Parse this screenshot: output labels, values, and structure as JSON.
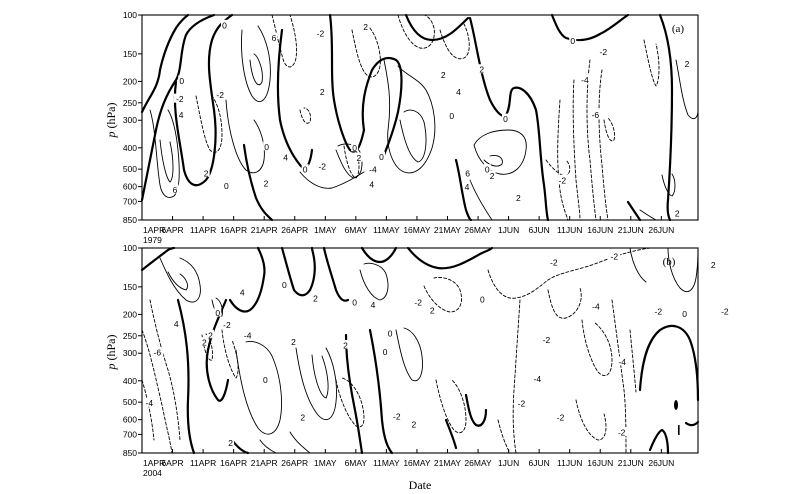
{
  "chart_data": [
    {
      "type": "contour",
      "panel_label": "(a)",
      "year_label": "1979",
      "xlabel": "",
      "ylabel": "p (hPa)",
      "ylabel_symbol": "p",
      "ylabel_unit": " (hPa)",
      "y_scale": "log",
      "ylim": [
        850,
        100
      ],
      "y_ticks": [
        100,
        150,
        200,
        250,
        300,
        400,
        500,
        600,
        700,
        850
      ],
      "x_ticks": [
        "1APR",
        "6APR",
        "11APR",
        "16APR",
        "21APR",
        "26APR",
        "1MAY",
        "6MAY",
        "11MAY",
        "16MAY",
        "21MAY",
        "26MAY",
        "1JUN",
        "6JUN",
        "11JUN",
        "16JUN",
        "21JUN",
        "26JUN"
      ],
      "contour_levels": [
        -6,
        -4,
        -2,
        0,
        2,
        4,
        6
      ],
      "labels": [
        {
          "text": "0",
          "day": 13.5,
          "p": 112
        },
        {
          "text": "6",
          "day": 21.6,
          "p": 128
        },
        {
          "text": "-2",
          "day": 29.2,
          "p": 122
        },
        {
          "text": "2",
          "day": 36.6,
          "p": 114
        },
        {
          "text": "0",
          "day": 70.5,
          "p": 132
        },
        {
          "text": "-2",
          "day": 75.5,
          "p": 148
        },
        {
          "text": "2",
          "day": 89.2,
          "p": 168
        },
        {
          "text": "0",
          "day": 6.5,
          "p": 200
        },
        {
          "text": "-2",
          "day": 6.2,
          "p": 242
        },
        {
          "text": "-2",
          "day": 12.8,
          "p": 232
        },
        {
          "text": "2",
          "day": 49.3,
          "p": 188
        },
        {
          "text": "2",
          "day": 55.6,
          "p": 178
        },
        {
          "text": "-4",
          "day": 72.5,
          "p": 198
        },
        {
          "text": "2",
          "day": 29.5,
          "p": 225
        },
        {
          "text": "4",
          "day": 51.8,
          "p": 225
        },
        {
          "text": "4",
          "day": 6.4,
          "p": 285
        },
        {
          "text": "0",
          "day": 50.7,
          "p": 288
        },
        {
          "text": "0",
          "day": 59.5,
          "p": 298
        },
        {
          "text": "-6",
          "day": 74.2,
          "p": 285
        },
        {
          "text": "0",
          "day": 20.4,
          "p": 398
        },
        {
          "text": "0",
          "day": 34.8,
          "p": 402
        },
        {
          "text": "4",
          "day": 23.5,
          "p": 445
        },
        {
          "text": "2",
          "day": 35.5,
          "p": 448
        },
        {
          "text": "0",
          "day": 39.2,
          "p": 443
        },
        {
          "text": "2",
          "day": 10.5,
          "p": 525
        },
        {
          "text": "0",
          "day": 26.7,
          "p": 505
        },
        {
          "text": "-2",
          "day": 29.5,
          "p": 490
        },
        {
          "text": "-4",
          "day": 37.8,
          "p": 505
        },
        {
          "text": "6",
          "day": 53.3,
          "p": 525
        },
        {
          "text": "2",
          "day": 57.3,
          "p": 540
        },
        {
          "text": "0",
          "day": 56.5,
          "p": 505
        },
        {
          "text": "-2",
          "day": 68.8,
          "p": 565
        },
        {
          "text": "2",
          "day": 20.3,
          "p": 585
        },
        {
          "text": "0",
          "day": 13.8,
          "p": 600
        },
        {
          "text": "4",
          "day": 37.6,
          "p": 590
        },
        {
          "text": "4",
          "day": 53.2,
          "p": 605
        },
        {
          "text": "6",
          "day": 5.4,
          "p": 625
        },
        {
          "text": "2",
          "day": 61.6,
          "p": 680
        },
        {
          "text": "2",
          "day": 87.6,
          "p": 800
        }
      ]
    },
    {
      "type": "contour",
      "panel_label": "(b)",
      "year_label": "2004",
      "xlabel": "Date",
      "ylabel": "p (hPa)",
      "ylabel_symbol": "p",
      "ylabel_unit": " (hPa)",
      "y_scale": "log",
      "ylim": [
        850,
        100
      ],
      "y_ticks": [
        100,
        150,
        200,
        250,
        300,
        400,
        500,
        600,
        700,
        850
      ],
      "x_ticks": [
        "1APR",
        "6APR",
        "11APR",
        "16APR",
        "21APR",
        "26APR",
        "1MAY",
        "6MAY",
        "11MAY",
        "16MAY",
        "21MAY",
        "26MAY",
        "1JUN",
        "6JUN",
        "11JUN",
        "16JUN",
        "21JUN",
        "26JUN"
      ],
      "contour_levels": [
        -6,
        -4,
        -2,
        0,
        2,
        4,
        6
      ],
      "labels": [
        {
          "text": "-2",
          "day": 67.4,
          "p": 117
        },
        {
          "text": "-2",
          "day": 77.3,
          "p": 110
        },
        {
          "text": "2",
          "day": 93.5,
          "p": 120
        },
        {
          "text": "4",
          "day": 16.4,
          "p": 160
        },
        {
          "text": "0",
          "day": 23.3,
          "p": 148
        },
        {
          "text": "2",
          "day": 28.4,
          "p": 170
        },
        {
          "text": "0",
          "day": 34.8,
          "p": 178
        },
        {
          "text": "4",
          "day": 37.8,
          "p": 182
        },
        {
          "text": "-2",
          "day": 45.2,
          "p": 178
        },
        {
          "text": "2",
          "day": 47.5,
          "p": 193
        },
        {
          "text": "0",
          "day": 55.7,
          "p": 172
        },
        {
          "text": "-4",
          "day": 74.3,
          "p": 185
        },
        {
          "text": "-2",
          "day": 84.5,
          "p": 195
        },
        {
          "text": "0",
          "day": 88.8,
          "p": 200
        },
        {
          "text": "-2",
          "day": 95.4,
          "p": 195
        },
        {
          "text": "0",
          "day": 12.4,
          "p": 198
        },
        {
          "text": "4",
          "day": 5.6,
          "p": 222
        },
        {
          "text": "-2",
          "day": 13.9,
          "p": 225
        },
        {
          "text": "2",
          "day": 11.2,
          "p": 250
        },
        {
          "text": "-4",
          "day": 17.3,
          "p": 250
        },
        {
          "text": "0",
          "day": 40.6,
          "p": 245
        },
        {
          "text": "-2",
          "day": 66.2,
          "p": 262
        },
        {
          "text": "-6",
          "day": 2.5,
          "p": 300
        },
        {
          "text": "2",
          "day": 10.2,
          "p": 270
        },
        {
          "text": "2",
          "day": 24.8,
          "p": 268
        },
        {
          "text": "2",
          "day": 33.3,
          "p": 278
        },
        {
          "text": "0",
          "day": 39.8,
          "p": 298
        },
        {
          "text": "-4",
          "day": 78.6,
          "p": 330
        },
        {
          "text": "0",
          "day": 20.2,
          "p": 398
        },
        {
          "text": "-4",
          "day": 64.7,
          "p": 395
        },
        {
          "text": "-4",
          "day": 1.2,
          "p": 508
        },
        {
          "text": "-2",
          "day": 62.1,
          "p": 510
        },
        {
          "text": "-2",
          "day": 41.7,
          "p": 585
        },
        {
          "text": "2",
          "day": 26.3,
          "p": 590
        },
        {
          "text": "-2",
          "day": 68.5,
          "p": 590
        },
        {
          "text": "2",
          "day": 44.5,
          "p": 635
        },
        {
          "text": "-2",
          "day": 78.5,
          "p": 690
        },
        {
          "text": "2",
          "day": 14.5,
          "p": 770
        }
      ]
    }
  ]
}
